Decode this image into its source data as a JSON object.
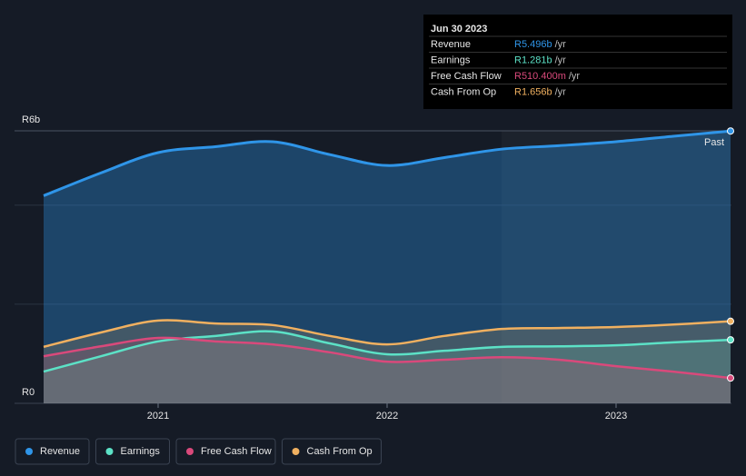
{
  "chart_data": {
    "type": "area",
    "x": [
      2020.5,
      2020.75,
      2021,
      2021.25,
      2021.5,
      2021.75,
      2022,
      2022.25,
      2022.5,
      2022.75,
      2023,
      2023.25,
      2023.5
    ],
    "series": [
      {
        "name": "Revenue",
        "color": "#2f95e8",
        "values": [
          4.19,
          4.65,
          5.06,
          5.18,
          5.28,
          5.02,
          4.8,
          4.96,
          5.13,
          5.2,
          5.28,
          5.39,
          5.496
        ]
      },
      {
        "name": "Earnings",
        "color": "#5ce1c6",
        "values": [
          0.64,
          0.95,
          1.25,
          1.36,
          1.45,
          1.21,
          0.99,
          1.06,
          1.14,
          1.15,
          1.17,
          1.23,
          1.281
        ]
      },
      {
        "name": "Free Cash Flow",
        "color": "#d9497b",
        "values": [
          0.95,
          1.15,
          1.32,
          1.25,
          1.19,
          1.03,
          0.84,
          0.88,
          0.93,
          0.88,
          0.75,
          0.64,
          0.5104
        ]
      },
      {
        "name": "Cash From Op",
        "color": "#f0b060",
        "values": [
          1.14,
          1.43,
          1.67,
          1.61,
          1.58,
          1.36,
          1.19,
          1.36,
          1.5,
          1.52,
          1.54,
          1.59,
          1.656
        ]
      }
    ],
    "xlim": [
      2020.5,
      2023.5
    ],
    "xticks": [
      2021,
      2022,
      2023
    ],
    "ylim": [
      0,
      5.5
    ],
    "yticks": [
      {
        "value": 0,
        "label": "R0"
      },
      {
        "value": 5.5,
        "label": "R6b"
      }
    ],
    "ygrid": [
      2,
      4
    ],
    "past_label": "Past",
    "past_from": 2022.5,
    "tooltip": {
      "date": "Jun 30 2023",
      "rows": [
        {
          "label": "Revenue",
          "value": "R5.496b",
          "unit": "/yr"
        },
        {
          "label": "Earnings",
          "value": "R1.281b",
          "unit": "/yr"
        },
        {
          "label": "Free Cash Flow",
          "value": "R510.400m",
          "unit": "/yr"
        },
        {
          "label": "Cash From Op",
          "value": "R1.656b",
          "unit": "/yr"
        }
      ]
    }
  }
}
